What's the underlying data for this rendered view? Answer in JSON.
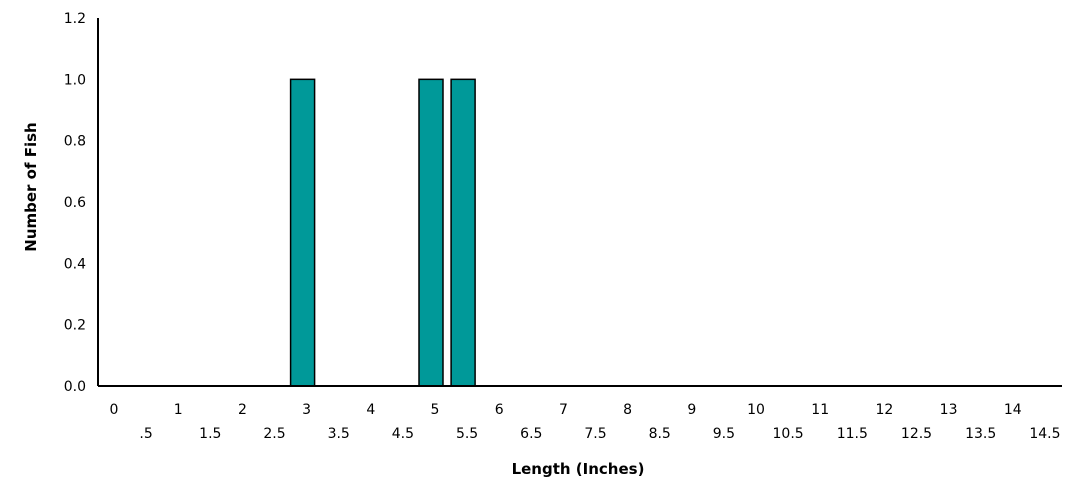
{
  "chart_data": {
    "type": "bar",
    "title": "",
    "xlabel": "Length (Inches)",
    "ylabel": "Number of Fish",
    "bar_color": "#009999",
    "ylim": [
      0,
      1.2
    ],
    "yticks": [
      "0.0",
      "0.2",
      "0.4",
      "0.6",
      "0.8",
      "1.0",
      "1.2"
    ],
    "categories": [
      "0",
      ".5",
      "1",
      "1.5",
      "2",
      "2.5",
      "3",
      "3.5",
      "4",
      "4.5",
      "5",
      "5.5",
      "6",
      "6.5",
      "7",
      "7.5",
      "8",
      "8.5",
      "9",
      "9.5",
      "10",
      "10.5",
      "11",
      "11.5",
      "12",
      "12.5",
      "13",
      "13.5",
      "14",
      "14.5"
    ],
    "values": [
      0,
      0,
      0,
      0,
      0,
      0,
      1,
      0,
      0,
      0,
      1,
      1,
      0,
      0,
      0,
      0,
      0,
      0,
      0,
      0,
      0,
      0,
      0,
      0,
      0,
      0,
      0,
      0,
      0,
      0
    ],
    "grid": false,
    "legend": "none"
  }
}
